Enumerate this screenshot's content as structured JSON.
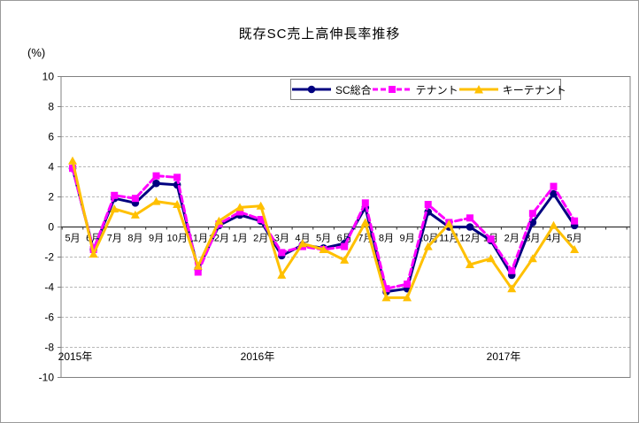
{
  "window": {
    "background": "#ffffff",
    "border_color": "#9a9a9a"
  },
  "chart_data": {
    "type": "line",
    "title": "既存SC売上高伸長率推移",
    "y_unit": "(%)",
    "xlabel": "",
    "ylabel": "",
    "ylim": [
      -10,
      10
    ],
    "y_tick_step": 2,
    "grid": true,
    "gridline_color": "#b8b8b8",
    "axis_color": "#808080",
    "zero_line_color": "#333333",
    "legend_position": "top-center",
    "categories": [
      "5月",
      "6月",
      "7月",
      "8月",
      "9月",
      "10月",
      "11月",
      "12月",
      "1月",
      "2月",
      "3月",
      "4月",
      "5月",
      "6月",
      "7月",
      "8月",
      "9月",
      "10月",
      "11月",
      "12月",
      "1月",
      "2月",
      "3月",
      "4月",
      "5月"
    ],
    "year_labels": [
      {
        "label": "2015年",
        "x": 84
      },
      {
        "label": "2016年",
        "x": 290
      },
      {
        "label": "2017年",
        "x": 568
      }
    ],
    "series": [
      {
        "name": "SC総合",
        "color": "#000080",
        "line_style": "solid",
        "marker": "circle",
        "values": [
          3.9,
          -1.5,
          1.9,
          1.6,
          2.9,
          2.8,
          -2.8,
          0.1,
          0.8,
          0.4,
          -1.9,
          -1.2,
          -1.4,
          -1.1,
          1.3,
          -4.3,
          -4.1,
          1.0,
          0.0,
          0.0,
          -0.9,
          -3.2,
          0.3,
          2.2,
          0.1
        ]
      },
      {
        "name": "テナント",
        "color": "#ff00ff",
        "line_style": "dashed",
        "marker": "square",
        "values": [
          3.9,
          -1.5,
          2.1,
          1.9,
          3.4,
          3.3,
          -3.0,
          0.2,
          1.0,
          0.5,
          -1.7,
          -1.3,
          -1.5,
          -1.3,
          1.6,
          -4.1,
          -3.8,
          1.5,
          0.3,
          0.6,
          -0.8,
          -2.9,
          0.9,
          2.7,
          0.4
        ]
      },
      {
        "name": "キーテナント",
        "color": "#ffc000",
        "line_style": "solid",
        "marker": "triangle",
        "values": [
          4.4,
          -1.8,
          1.2,
          0.8,
          1.7,
          1.5,
          -2.6,
          0.4,
          1.3,
          1.4,
          -3.2,
          -1.1,
          -1.5,
          -2.2,
          0.3,
          -4.7,
          -4.7,
          -1.3,
          0.2,
          -2.5,
          -2.1,
          -4.1,
          -2.1,
          0.1,
          -1.5
        ]
      }
    ]
  }
}
